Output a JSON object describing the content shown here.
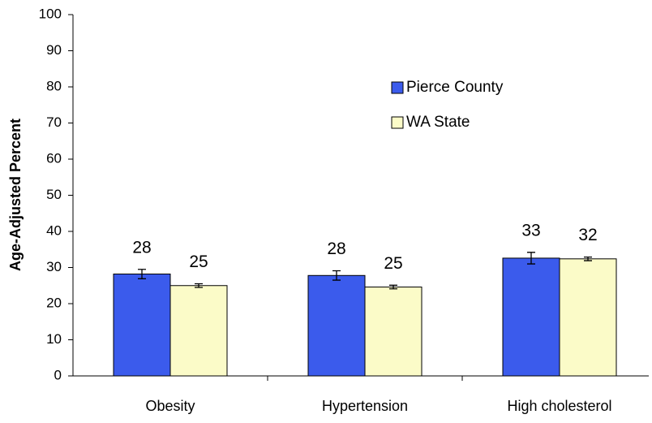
{
  "chart_data": {
    "type": "bar",
    "y_label": "Age-Adjusted Percent",
    "categories": [
      "Obesity",
      "Hypertension",
      "High cholesterol"
    ],
    "series": [
      {
        "name": "Pierce County",
        "color": "#3b5bec",
        "values": [
          28.2,
          27.8,
          32.6
        ],
        "errors": [
          1.3,
          1.3,
          1.6
        ],
        "value_labels": [
          "28",
          "28",
          "33"
        ]
      },
      {
        "name": "WA State",
        "color": "#fbfbc8",
        "values": [
          25.0,
          24.6,
          32.4
        ],
        "errors": [
          0.5,
          0.5,
          0.5
        ],
        "value_labels": [
          "25",
          "25",
          "32"
        ]
      }
    ],
    "ylim": [
      0,
      100
    ],
    "yticks": [
      0,
      10,
      20,
      30,
      40,
      50,
      60,
      70,
      80,
      90,
      100
    ],
    "grid": false,
    "legend": "upper-right"
  }
}
